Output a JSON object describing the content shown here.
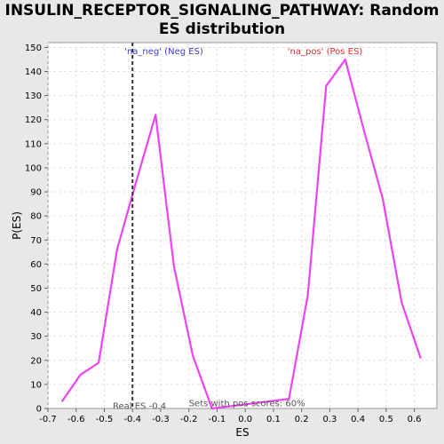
{
  "chart_data": {
    "type": "line",
    "title_line1": "INSULIN_RECEPTOR_SIGNALING_PATHWAY: Random",
    "title_line2": "ES distribution",
    "xlabel": "ES",
    "ylabel": "P(ES)",
    "xlim": [
      -0.7,
      0.68
    ],
    "ylim": [
      0,
      152
    ],
    "xticks": [
      "-0.7",
      "-0.6",
      "-0.5",
      "-0.4",
      "-0.3",
      "-0.2",
      "-0.1",
      "0.0",
      "0.1",
      "0.2",
      "0.3",
      "0.4",
      "0.5",
      "0.6"
    ],
    "xtick_values": [
      -0.7,
      -0.6,
      -0.5,
      -0.4,
      -0.3,
      -0.2,
      -0.1,
      0.0,
      0.1,
      0.2,
      0.3,
      0.4,
      0.5,
      0.6
    ],
    "yticks": [
      "0",
      "10",
      "20",
      "30",
      "40",
      "50",
      "60",
      "70",
      "80",
      "90",
      "100",
      "110",
      "120",
      "130",
      "140",
      "150"
    ],
    "ytick_values": [
      0,
      10,
      20,
      30,
      40,
      50,
      60,
      70,
      80,
      90,
      100,
      110,
      120,
      130,
      140,
      150
    ],
    "grid": true,
    "series": [
      {
        "color": "#ee44ee",
        "x": [
          -0.65,
          -0.585,
          -0.52,
          -0.455,
          -0.39,
          -0.318,
          -0.253,
          -0.186,
          -0.118,
          0.155,
          0.222,
          0.287,
          0.355,
          0.42,
          0.488,
          0.555,
          0.622
        ],
        "y": [
          3,
          14,
          19,
          66,
          93,
          122,
          59,
          22,
          0,
          4,
          47,
          134,
          145,
          116,
          87,
          44,
          21
        ]
      }
    ],
    "real_es": {
      "value": -0.4,
      "label": "Real ES -0.4",
      "neg_label": "'na_neg' (Neg ES)",
      "neg_color": "#3c3cd0"
    },
    "pos_label": "'na_pos' (Pos ES)",
    "pos_color": "#e03030",
    "footer_note": "Sets with pos scores: 60%"
  }
}
